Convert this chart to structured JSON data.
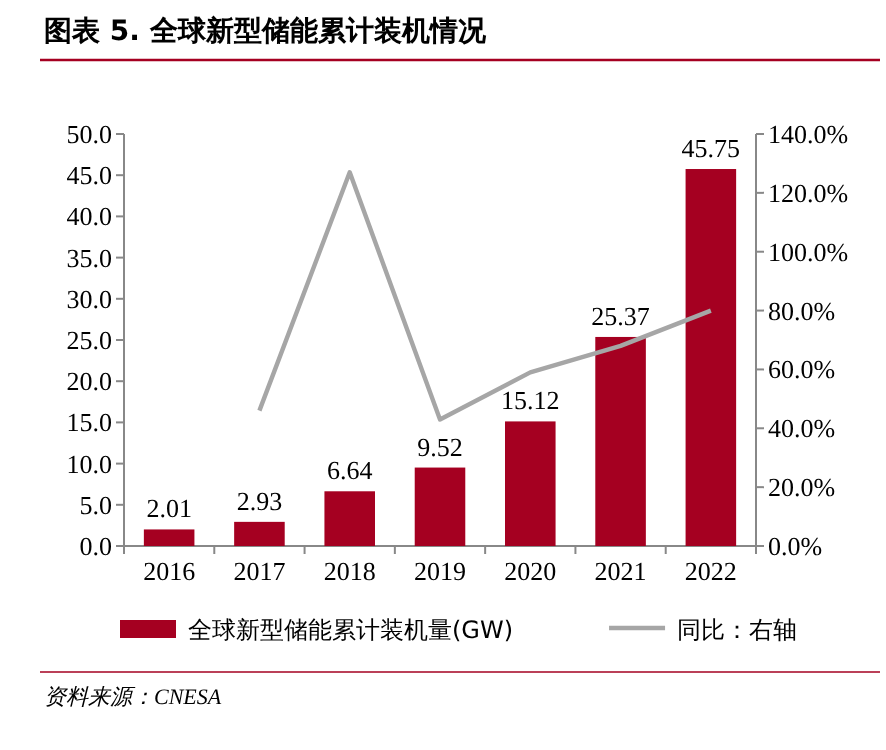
{
  "chart_data": {
    "type": "bar",
    "title": "图表 5. 全球新型储能累计装机情况",
    "categories": [
      "2016",
      "2017",
      "2018",
      "2019",
      "2020",
      "2021",
      "2022"
    ],
    "series": [
      {
        "name": "全球新型储能累计装机量(GW)",
        "color": "#a50021",
        "values": [
          2.01,
          2.93,
          6.64,
          9.52,
          15.12,
          25.37,
          45.75
        ],
        "value_labels": [
          "2.01",
          "2.93",
          "6.64",
          "9.52",
          "15.12",
          "25.37",
          "45.75"
        ]
      },
      {
        "name": "同比：右轴",
        "type": "line",
        "axis": "y2",
        "color": "#a6a6a6",
        "values": [
          null,
          46,
          127,
          43,
          59,
          68,
          80
        ]
      }
    ],
    "ylim": [
      0,
      50
    ],
    "yticks": [
      {
        "value": 0,
        "label": "0.0"
      },
      {
        "value": 5,
        "label": "5.0"
      },
      {
        "value": 10,
        "label": "10.0"
      },
      {
        "value": 15,
        "label": "15.0"
      },
      {
        "value": 20,
        "label": "20.0"
      },
      {
        "value": 25,
        "label": "25.0"
      },
      {
        "value": 30,
        "label": "30.0"
      },
      {
        "value": 35,
        "label": "35.0"
      },
      {
        "value": 40,
        "label": "40.0"
      },
      {
        "value": 45,
        "label": "45.0"
      },
      {
        "value": 50,
        "label": "50.0"
      }
    ],
    "y2lim": [
      0,
      140
    ],
    "y2ticks": [
      {
        "value": 0,
        "label": "0.0%"
      },
      {
        "value": 20,
        "label": "20.0%"
      },
      {
        "value": 40,
        "label": "40.0%"
      },
      {
        "value": 60,
        "label": "60.0%"
      },
      {
        "value": 80,
        "label": "80.0%"
      },
      {
        "value": 100,
        "label": "100.0%"
      },
      {
        "value": 120,
        "label": "120.0%"
      },
      {
        "value": 140,
        "label": "140.0%"
      }
    ],
    "legend": "bottom",
    "grid": false,
    "marker": "none",
    "annotations": [
      "资料来源：CNESA"
    ]
  }
}
